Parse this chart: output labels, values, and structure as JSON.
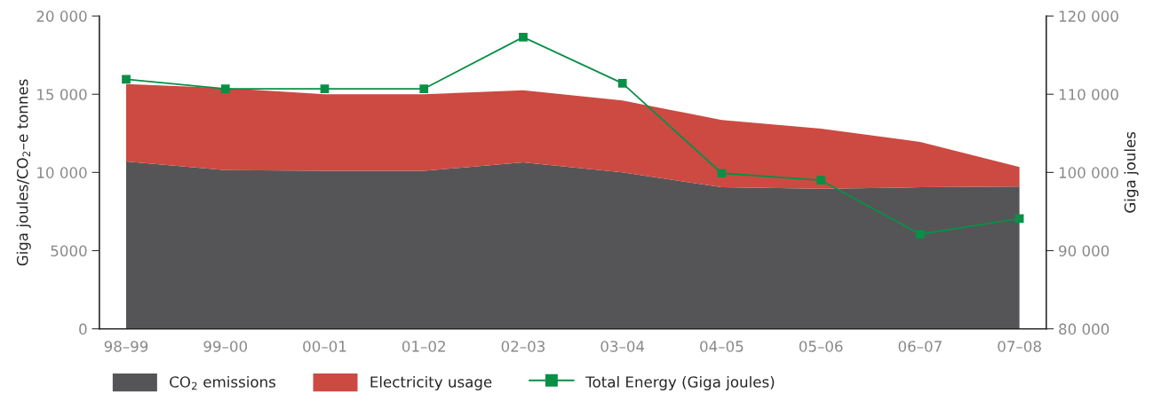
{
  "chart_data": {
    "type": "area",
    "stacked": true,
    "ylabel": "Giga joules/CO$_{2}$–e tonnes",
    "y2label": "Giga joules",
    "categories": [
      "98–99",
      "99–00",
      "00–01",
      "01–02",
      "02–03",
      "03–04",
      "04–05",
      "05–06",
      "06–07",
      "07–08"
    ],
    "series": [
      {
        "name": "CO$_{2}$ emissions",
        "color": "#555557",
        "values": [
          10700,
          10150,
          10100,
          10100,
          10650,
          10000,
          9050,
          8950,
          9050,
          9100
        ]
      },
      {
        "name": "Electricity usage",
        "color": "#cc4a42",
        "values": [
          4950,
          5250,
          4900,
          4900,
          4600,
          4600,
          4300,
          3850,
          2900,
          1250
        ]
      },
      {
        "name": "Total Energy (Giga joules)",
        "type": "line",
        "axis": "y2",
        "color": "#0a8f47",
        "marker": "square",
        "values": [
          111900,
          110700,
          110700,
          110700,
          117300,
          111400,
          99900,
          99000,
          92100,
          94100
        ]
      }
    ],
    "ylim": [
      0,
      20000
    ],
    "yticks": [
      0,
      {
        "value": 5000,
        "label": "5000"
      },
      {
        "value": 10000,
        "label": "10 000"
      },
      {
        "value": 15000,
        "label": "15 000"
      },
      {
        "value": 20000,
        "label": "20 000"
      }
    ],
    "y2lim": [
      80000,
      120000
    ],
    "y2ticks": [
      {
        "value": 80000,
        "label": "80 000"
      },
      {
        "value": 90000,
        "label": "90 000"
      },
      {
        "value": 100000,
        "label": "100 000"
      },
      {
        "value": 110000,
        "label": "110 000"
      },
      {
        "value": 120000,
        "label": "120 000"
      }
    ],
    "grid": false,
    "legend": "bottom"
  }
}
